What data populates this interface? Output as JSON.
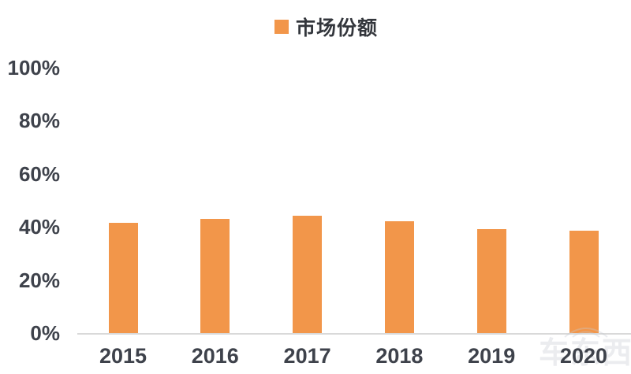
{
  "legend": {
    "label": "市场份额"
  },
  "chart_data": {
    "type": "bar",
    "title": "",
    "xlabel": "",
    "ylabel": "",
    "categories": [
      "2015",
      "2016",
      "2017",
      "2018",
      "2019",
      "2020"
    ],
    "series": [
      {
        "name": "市场份额",
        "values": [
          41.6,
          43.1,
          44.2,
          42.2,
          39.2,
          38.6
        ]
      }
    ],
    "y_ticks": [
      "100%",
      "80%",
      "60%",
      "40%",
      "20%",
      "0%"
    ],
    "ylim": [
      0,
      100
    ],
    "grid": false,
    "legend_position": "top-center",
    "bar_color": "#F2964A"
  },
  "watermark": {
    "text": "车东西"
  },
  "colors": {
    "bar": "#F2964A",
    "axis_line": "#D9D9D9",
    "label_text": "#3E424B",
    "legend_text": "#33363C",
    "background": "#FFFFFF"
  }
}
